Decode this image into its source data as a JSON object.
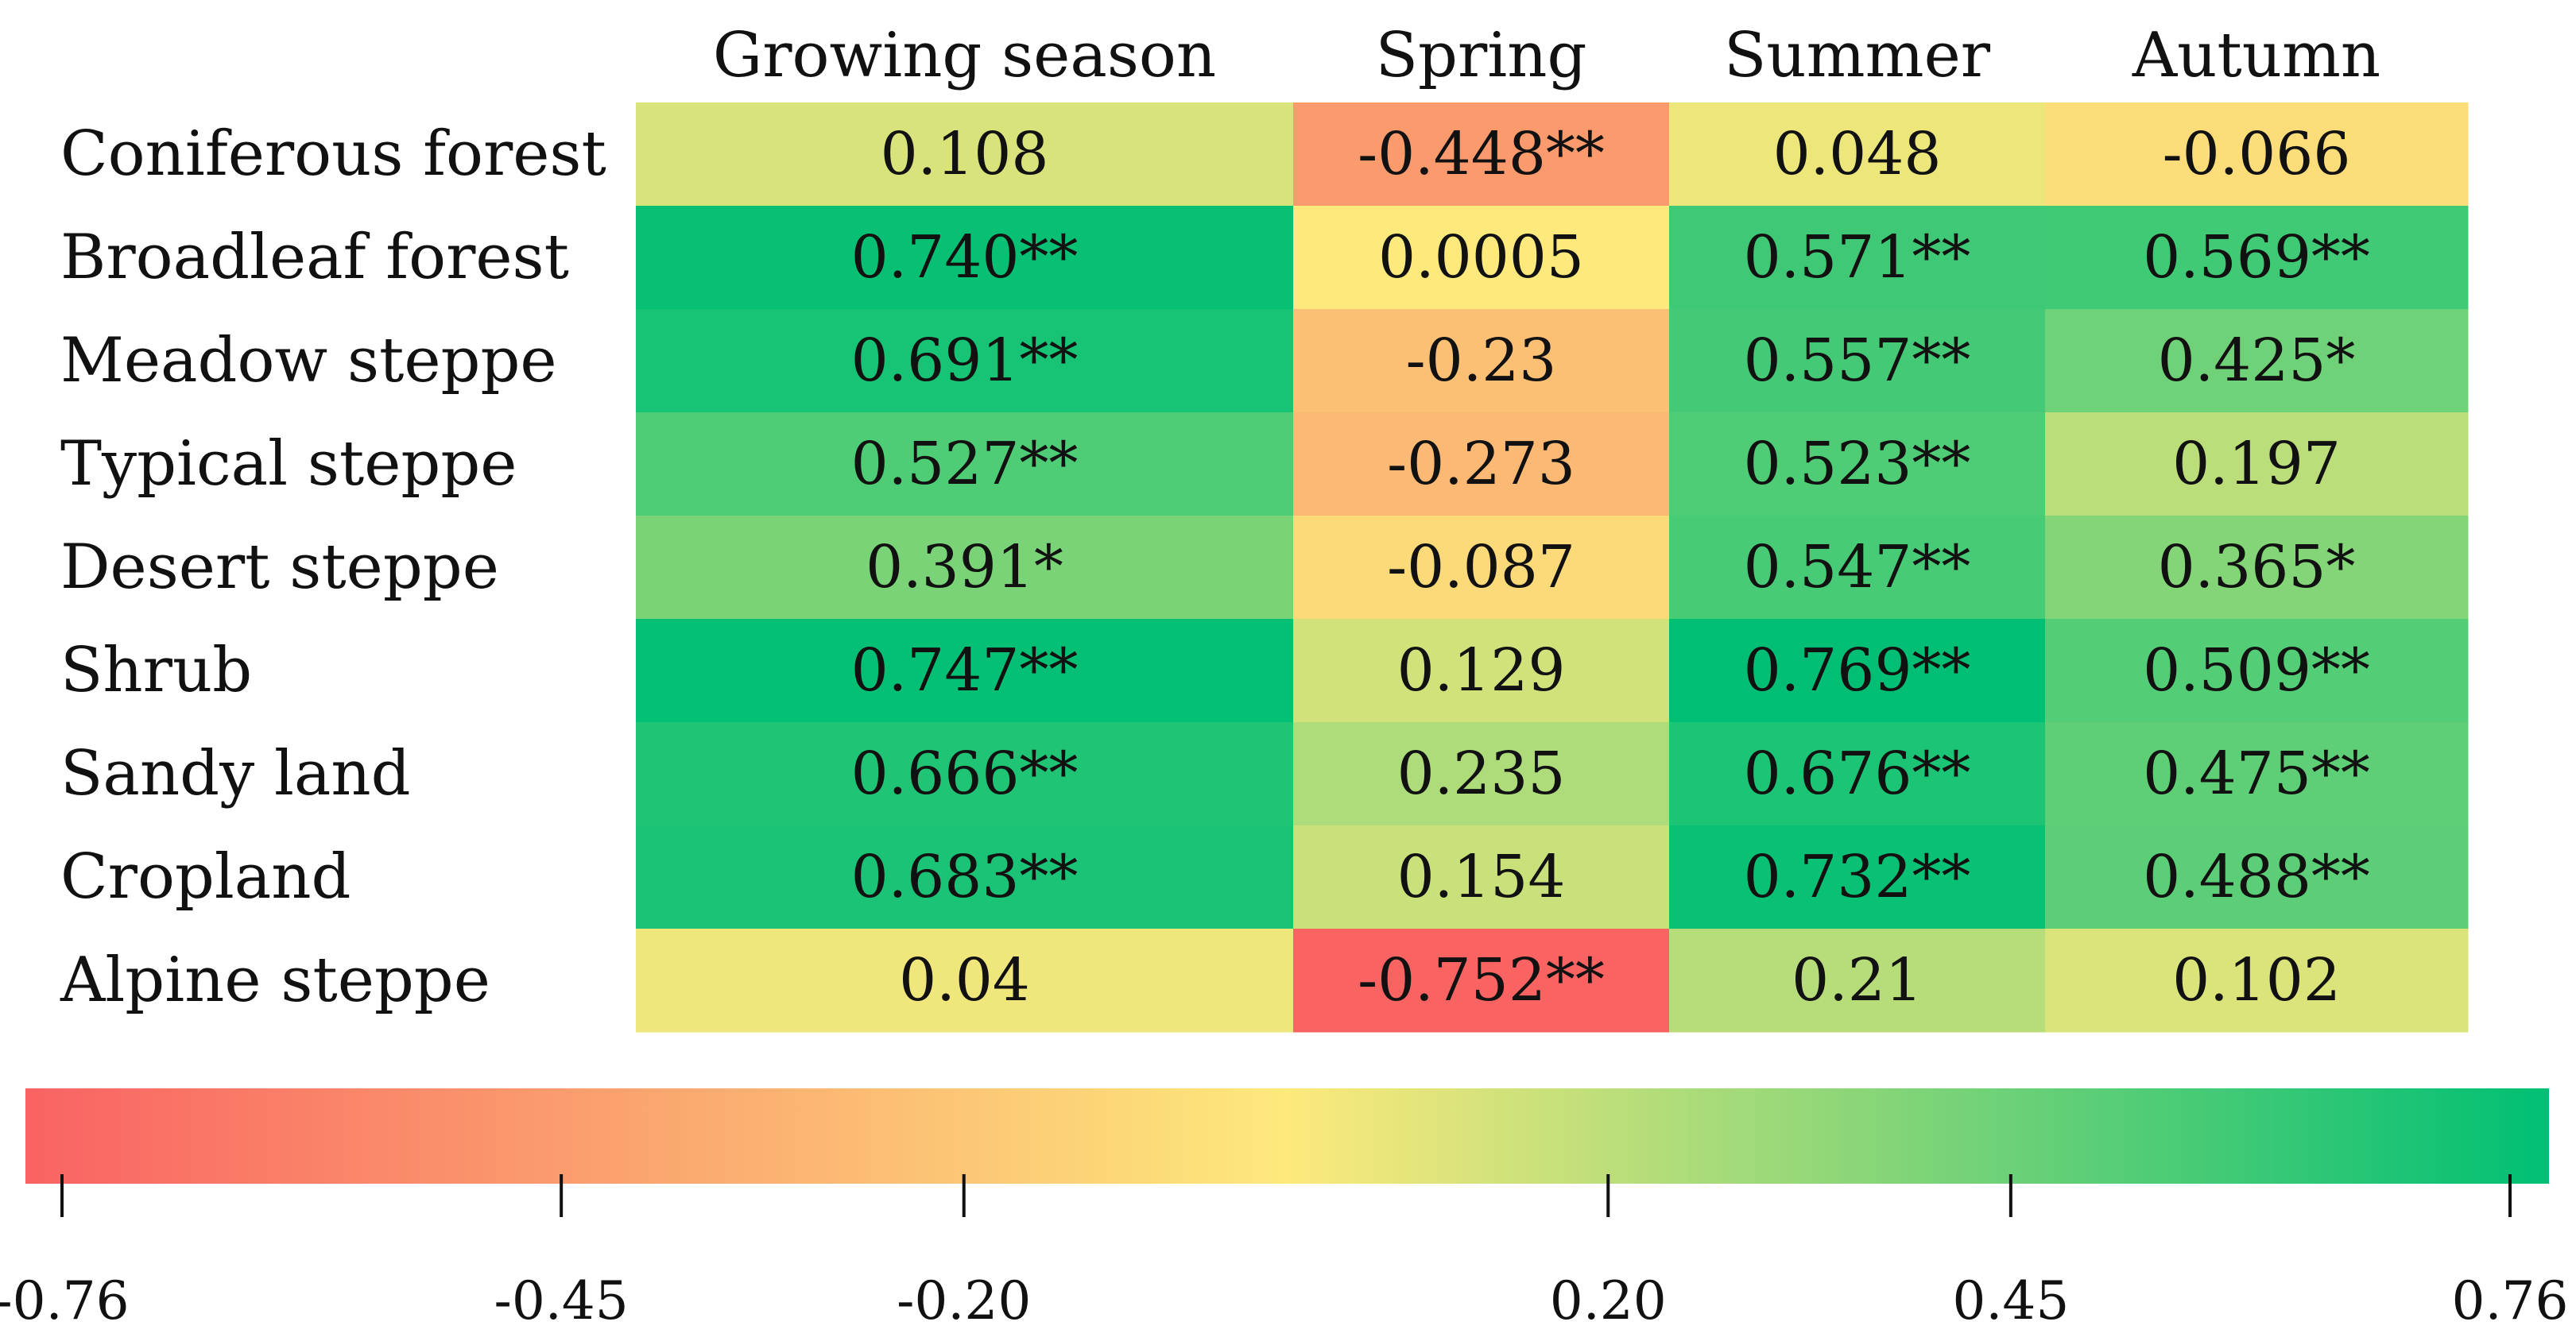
{
  "chart_data": {
    "type": "heatmap",
    "columns": [
      "Growing season",
      "Spring",
      "Summer",
      "Autumn"
    ],
    "rows": [
      "Coniferous forest",
      "Broadleaf forest",
      "Meadow steppe",
      "Typical steppe",
      "Desert steppe",
      "Shrub",
      "Sandy land",
      "Cropland",
      "Alpine steppe"
    ],
    "values": [
      [
        0.108,
        -0.448,
        0.048,
        -0.066
      ],
      [
        0.74,
        0.0005,
        0.571,
        0.569
      ],
      [
        0.691,
        -0.23,
        0.557,
        0.425
      ],
      [
        0.527,
        -0.273,
        0.523,
        0.197
      ],
      [
        0.391,
        -0.087,
        0.547,
        0.365
      ],
      [
        0.747,
        0.129,
        0.769,
        0.509
      ],
      [
        0.666,
        0.235,
        0.676,
        0.475
      ],
      [
        0.683,
        0.154,
        0.732,
        0.488
      ],
      [
        0.04,
        -0.752,
        0.21,
        0.102
      ]
    ],
    "labels": [
      [
        "0.108",
        "-0.448**",
        "0.048",
        "-0.066"
      ],
      [
        "0.740**",
        "0.0005",
        "0.571**",
        "0.569**"
      ],
      [
        "0.691**",
        "-0.23",
        "0.557**",
        "0.425*"
      ],
      [
        "0.527**",
        "-0.273",
        "0.523**",
        "0.197"
      ],
      [
        "0.391*",
        "-0.087",
        "0.547**",
        "0.365*"
      ],
      [
        "0.747**",
        "0.129",
        "0.769**",
        "0.509**"
      ],
      [
        "0.666**",
        "0.235",
        "0.676**",
        "0.475**"
      ],
      [
        "0.683**",
        "0.154",
        "0.732**",
        "0.488**"
      ],
      [
        "0.04",
        "-0.752**",
        "0.21",
        "0.102"
      ]
    ],
    "colorbar": {
      "range": [
        -0.76,
        0.76
      ],
      "colors": [
        "#f96363",
        "#fde97c",
        "#00bf74"
      ],
      "ticks": [
        -0.76,
        -0.45,
        -0.2,
        0.2,
        0.45,
        0.76
      ],
      "tick_labels": [
        "-0.76",
        "-0.45",
        "-0.20",
        "0.20",
        "0.45",
        "0.76"
      ]
    }
  }
}
